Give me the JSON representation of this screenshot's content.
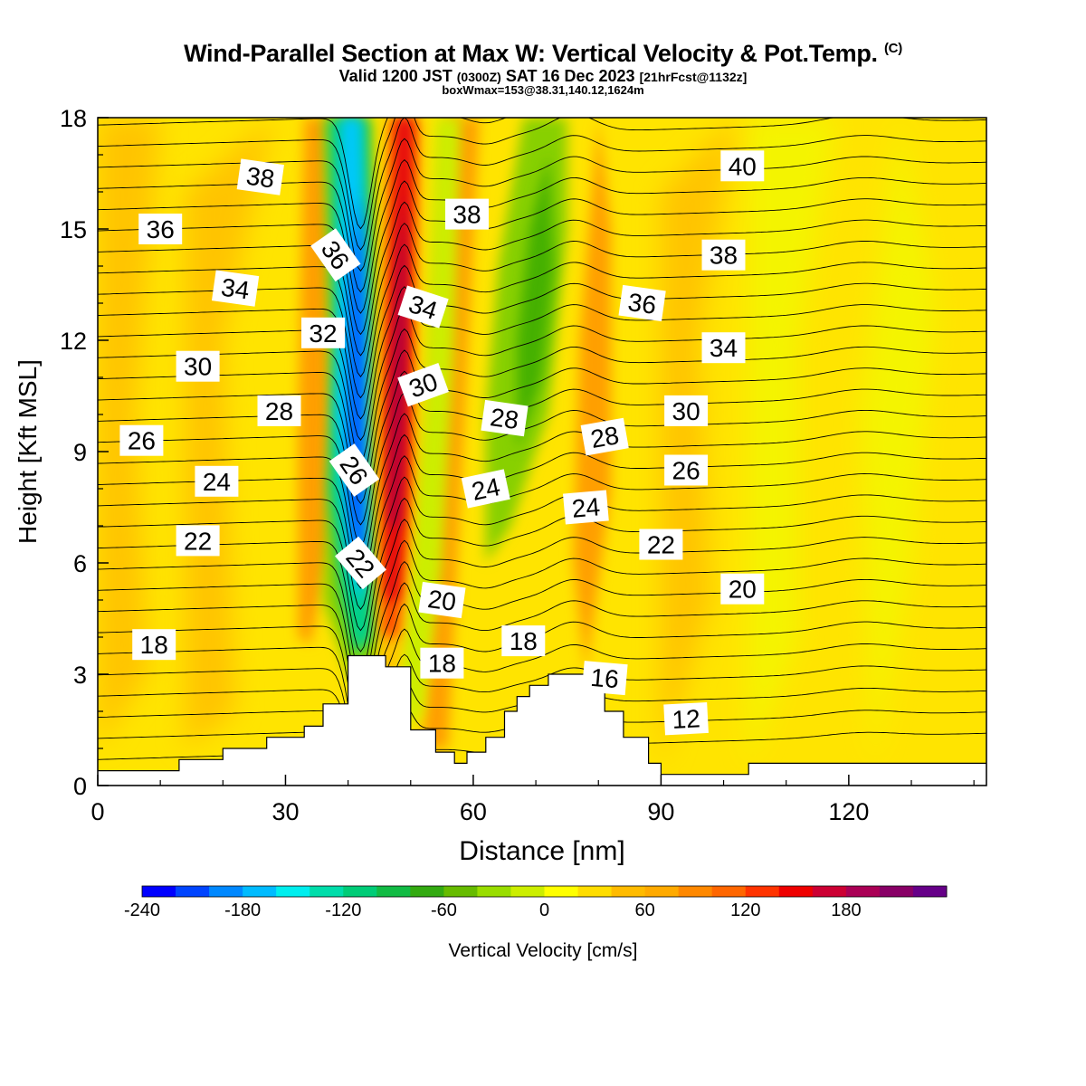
{
  "header": {
    "title": "Wind-Parallel Section at Max W: Vertical Velocity & Pot.Temp.",
    "copyright": "(C)",
    "valid_prefix": "Valid 1200 JST",
    "valid_utc": "(0300Z)",
    "valid_date": "SAT 16 Dec 2023",
    "forecast_tag": "[21hrFcst@1132z]",
    "boxwmax": "boxWmax=153@38.31,140.12,1624m"
  },
  "chart_data": {
    "type": "heatmap",
    "xlabel": "Distance [nm]",
    "ylabel": "Height [Kft MSL]",
    "xlim": [
      0,
      142
    ],
    "ylim": [
      0,
      18
    ],
    "xticks": [
      "0",
      "30",
      "60",
      "90",
      "120"
    ],
    "yticks": [
      "0",
      "3",
      "6",
      "9",
      "12",
      "15",
      "18"
    ],
    "colorbar": {
      "label": "Vertical Velocity [cm/s]",
      "ticks": [
        "-240",
        "-180",
        "-120",
        "-60",
        "0",
        "60",
        "120",
        "180"
      ],
      "colors": [
        "#0000ff",
        "#0044ff",
        "#0088ff",
        "#00bbff",
        "#00eeee",
        "#00ddaa",
        "#00cc77",
        "#11bb44",
        "#33aa11",
        "#66bb00",
        "#99dd00",
        "#ccee00",
        "#ffff00",
        "#ffdd00",
        "#ffbb00",
        "#ffaa00",
        "#ff8800",
        "#ff6600",
        "#ff3300",
        "#ee0000",
        "#cc0033",
        "#aa0055",
        "#880066",
        "#660088"
      ]
    },
    "vertical_velocity_features": [
      {
        "name": "downdraft core",
        "x_nm": 42,
        "y_kft_range": [
          4,
          18
        ],
        "min_cm_s": -240
      },
      {
        "name": "updraft core",
        "x_nm": 49,
        "y_kft_range": [
          4,
          18
        ],
        "max_cm_s": 200
      },
      {
        "name": "downdraft band",
        "x_nm": 70,
        "y_kft_range": [
          6,
          18
        ],
        "min_cm_s": -90
      }
    ],
    "terrain_kft": {
      "x": [
        0,
        13,
        20,
        27,
        33,
        36,
        40,
        42,
        46,
        50,
        54,
        57,
        59,
        62,
        65,
        67,
        69,
        72,
        76,
        80,
        81,
        84,
        88,
        90,
        100,
        104,
        118,
        142
      ],
      "y": [
        0.4,
        0.7,
        1.0,
        1.3,
        1.6,
        2.2,
        3.5,
        3.5,
        3.2,
        1.5,
        0.9,
        0.6,
        0.9,
        1.3,
        2.0,
        2.4,
        2.7,
        3.0,
        3.0,
        2.6,
        2.0,
        1.3,
        0.6,
        0.3,
        0.3,
        0.6,
        0.6,
        0.3
      ]
    },
    "theta_labels": [
      {
        "text": "38",
        "x": 26,
        "y": 16.4,
        "rot": 8
      },
      {
        "text": "36",
        "x": 10,
        "y": 15.0,
        "rot": 0
      },
      {
        "text": "34",
        "x": 22,
        "y": 13.4,
        "rot": 8
      },
      {
        "text": "32",
        "x": 36,
        "y": 12.2,
        "rot": 0
      },
      {
        "text": "30",
        "x": 16,
        "y": 11.3,
        "rot": 0
      },
      {
        "text": "28",
        "x": 29,
        "y": 10.1,
        "rot": 0
      },
      {
        "text": "26",
        "x": 7,
        "y": 9.3,
        "rot": 0
      },
      {
        "text": "24",
        "x": 19,
        "y": 8.2,
        "rot": 0
      },
      {
        "text": "22",
        "x": 16,
        "y": 6.6,
        "rot": 0
      },
      {
        "text": "18",
        "x": 9,
        "y": 3.8,
        "rot": 0
      },
      {
        "text": "36",
        "x": 38,
        "y": 14.3,
        "rot": 55
      },
      {
        "text": "34",
        "x": 52,
        "y": 12.9,
        "rot": 18
      },
      {
        "text": "30",
        "x": 52,
        "y": 10.8,
        "rot": -20
      },
      {
        "text": "26",
        "x": 41,
        "y": 8.5,
        "rot": 55
      },
      {
        "text": "22",
        "x": 42,
        "y": 6.0,
        "rot": 50
      },
      {
        "text": "38",
        "x": 59,
        "y": 15.4,
        "rot": 0
      },
      {
        "text": "28",
        "x": 65,
        "y": 9.9,
        "rot": 8
      },
      {
        "text": "24",
        "x": 62,
        "y": 8.0,
        "rot": -12
      },
      {
        "text": "20",
        "x": 55,
        "y": 5.0,
        "rot": 8
      },
      {
        "text": "18",
        "x": 55,
        "y": 3.3,
        "rot": 0
      },
      {
        "text": "18",
        "x": 68,
        "y": 3.9,
        "rot": 0
      },
      {
        "text": "28",
        "x": 81,
        "y": 9.4,
        "rot": -10
      },
      {
        "text": "24",
        "x": 78,
        "y": 7.5,
        "rot": -5
      },
      {
        "text": "36",
        "x": 87,
        "y": 13.0,
        "rot": 8
      },
      {
        "text": "16",
        "x": 81,
        "y": 2.9,
        "rot": 5
      },
      {
        "text": "40",
        "x": 103,
        "y": 16.7,
        "rot": 0
      },
      {
        "text": "38",
        "x": 100,
        "y": 14.3,
        "rot": 0
      },
      {
        "text": "34",
        "x": 100,
        "y": 11.8,
        "rot": 0
      },
      {
        "text": "30",
        "x": 94,
        "y": 10.1,
        "rot": 0
      },
      {
        "text": "26",
        "x": 94,
        "y": 8.5,
        "rot": 0
      },
      {
        "text": "22",
        "x": 90,
        "y": 6.5,
        "rot": 0
      },
      {
        "text": "20",
        "x": 103,
        "y": 5.3,
        "rot": 0
      },
      {
        "text": "12",
        "x": 94,
        "y": 1.8,
        "rot": -3
      }
    ]
  }
}
